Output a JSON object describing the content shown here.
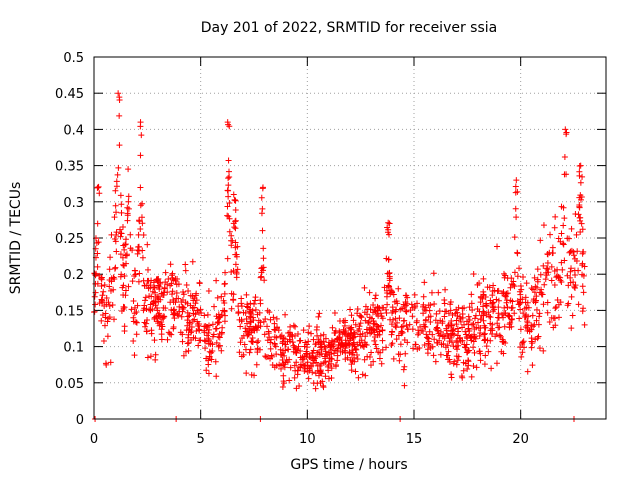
{
  "chart_data": {
    "type": "scatter",
    "title": "Day 201 of 2022, SRMTID for receiver ssia",
    "xlabel": "GPS time / hours",
    "ylabel": "SRMTID / TECUs",
    "xlim": [
      0,
      24
    ],
    "ylim": [
      0,
      0.5
    ],
    "xticks": [
      0,
      5,
      10,
      15,
      20
    ],
    "xtick_labels": [
      "0",
      "5",
      "10",
      "15",
      "20"
    ],
    "yticks": [
      0,
      0.05,
      0.1,
      0.15,
      0.2,
      0.25,
      0.3,
      0.35,
      0.4,
      0.45,
      0.5
    ],
    "ytick_labels": [
      "0",
      "0.05",
      "0.1",
      "0.15",
      "0.2",
      "0.25",
      "0.3",
      "0.35",
      "0.4",
      "0.45",
      "0.5"
    ],
    "grid": true,
    "marker": "+",
    "series_color": "#ff0000",
    "zero_markers_x": [
      0.05,
      3.85,
      7.8,
      14.35,
      22.5
    ],
    "trend": [
      [
        0.0,
        0.17
      ],
      [
        0.5,
        0.15
      ],
      [
        1.0,
        0.19
      ],
      [
        1.5,
        0.18
      ],
      [
        2.0,
        0.16
      ],
      [
        2.5,
        0.15
      ],
      [
        3.0,
        0.16
      ],
      [
        3.5,
        0.155
      ],
      [
        4.0,
        0.15
      ],
      [
        4.5,
        0.14
      ],
      [
        5.0,
        0.12
      ],
      [
        5.5,
        0.11
      ],
      [
        6.0,
        0.13
      ],
      [
        6.5,
        0.14
      ],
      [
        7.0,
        0.13
      ],
      [
        7.5,
        0.12
      ],
      [
        8.0,
        0.11
      ],
      [
        8.5,
        0.105
      ],
      [
        9.0,
        0.1
      ],
      [
        9.5,
        0.09
      ],
      [
        10.0,
        0.085
      ],
      [
        10.5,
        0.09
      ],
      [
        11.0,
        0.095
      ],
      [
        11.5,
        0.1
      ],
      [
        12.0,
        0.105
      ],
      [
        12.5,
        0.11
      ],
      [
        13.0,
        0.12
      ],
      [
        13.5,
        0.13
      ],
      [
        14.0,
        0.14
      ],
      [
        14.5,
        0.125
      ],
      [
        15.0,
        0.13
      ],
      [
        15.5,
        0.13
      ],
      [
        16.0,
        0.125
      ],
      [
        16.5,
        0.12
      ],
      [
        17.0,
        0.115
      ],
      [
        17.5,
        0.12
      ],
      [
        18.0,
        0.125
      ],
      [
        18.5,
        0.14
      ],
      [
        19.0,
        0.155
      ],
      [
        19.5,
        0.16
      ],
      [
        20.0,
        0.155
      ],
      [
        20.5,
        0.13
      ],
      [
        21.0,
        0.17
      ],
      [
        21.5,
        0.19
      ],
      [
        22.0,
        0.2
      ],
      [
        22.5,
        0.21
      ],
      [
        23.0,
        0.19
      ]
    ],
    "spikes": [
      {
        "x": 0.2,
        "peak": 0.32,
        "width": 0.25
      },
      {
        "x": 1.15,
        "peak": 0.45,
        "width": 0.3
      },
      {
        "x": 1.6,
        "peak": 0.3,
        "width": 0.25
      },
      {
        "x": 2.2,
        "peak": 0.41,
        "width": 0.25
      },
      {
        "x": 6.3,
        "peak": 0.41,
        "width": 0.3
      },
      {
        "x": 6.6,
        "peak": 0.31,
        "width": 0.25
      },
      {
        "x": 7.9,
        "peak": 0.32,
        "width": 0.2
      },
      {
        "x": 13.8,
        "peak": 0.27,
        "width": 0.2
      },
      {
        "x": 19.8,
        "peak": 0.33,
        "width": 0.15
      },
      {
        "x": 22.1,
        "peak": 0.4,
        "width": 0.2
      },
      {
        "x": 22.8,
        "peak": 0.35,
        "width": 0.2
      }
    ],
    "time_span_hours": [
      0,
      23
    ]
  }
}
